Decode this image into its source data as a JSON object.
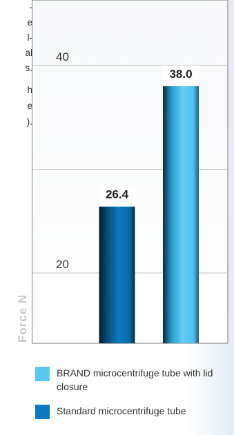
{
  "side_text": [
    "-",
    "e",
    "l-",
    "al",
    "s.",
    "h",
    "e",
    ")."
  ],
  "colors": {
    "brand_top": "#6fd1f5",
    "brand_bottom": "#3ab9ea",
    "standard_top": "#0c7fbf",
    "standard_bottom": "#0569a8",
    "grid": "#aaaaaa",
    "frame": "#777777"
  },
  "chart_data": {
    "type": "bar",
    "ylabel": "Force N",
    "ylim": [
      20,
      40
    ],
    "y_ticks": [
      20,
      40
    ],
    "series": [
      {
        "name": "Standard microcentrifuge tube",
        "value": 26.4,
        "label": "26.4",
        "color_key": "standard"
      },
      {
        "name": "BRAND microcentrifuge tube with lid closure",
        "value": 38.0,
        "label": "38.0",
        "color_key": "brand"
      }
    ]
  },
  "legend": [
    {
      "label": "BRAND microcentrifuge tube with lid closure",
      "color": "#5bc8f2"
    },
    {
      "label": "Standard microcentrifuge tube",
      "color": "#0b7ac0"
    }
  ]
}
